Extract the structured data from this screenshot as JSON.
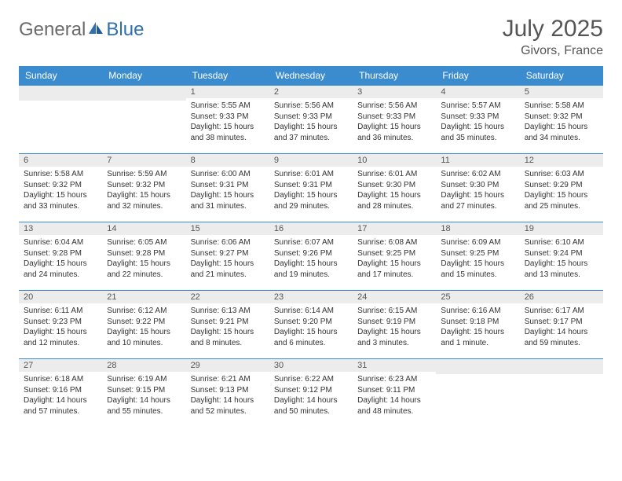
{
  "brand": {
    "part1": "General",
    "part2": "Blue"
  },
  "title": "July 2025",
  "location": "Givors, France",
  "colors": {
    "header_bg": "#3b8bcf",
    "header_fg": "#ffffff",
    "daynum_bg": "#ececec",
    "border": "#3b8bcf",
    "logo_gray": "#6a6a6a",
    "logo_blue": "#2f6fb0"
  },
  "weekdays": [
    "Sunday",
    "Monday",
    "Tuesday",
    "Wednesday",
    "Thursday",
    "Friday",
    "Saturday"
  ],
  "weeks": [
    [
      {
        "day": "",
        "details": ""
      },
      {
        "day": "",
        "details": ""
      },
      {
        "day": "1",
        "details": "Sunrise: 5:55 AM\nSunset: 9:33 PM\nDaylight: 15 hours and 38 minutes."
      },
      {
        "day": "2",
        "details": "Sunrise: 5:56 AM\nSunset: 9:33 PM\nDaylight: 15 hours and 37 minutes."
      },
      {
        "day": "3",
        "details": "Sunrise: 5:56 AM\nSunset: 9:33 PM\nDaylight: 15 hours and 36 minutes."
      },
      {
        "day": "4",
        "details": "Sunrise: 5:57 AM\nSunset: 9:33 PM\nDaylight: 15 hours and 35 minutes."
      },
      {
        "day": "5",
        "details": "Sunrise: 5:58 AM\nSunset: 9:32 PM\nDaylight: 15 hours and 34 minutes."
      }
    ],
    [
      {
        "day": "6",
        "details": "Sunrise: 5:58 AM\nSunset: 9:32 PM\nDaylight: 15 hours and 33 minutes."
      },
      {
        "day": "7",
        "details": "Sunrise: 5:59 AM\nSunset: 9:32 PM\nDaylight: 15 hours and 32 minutes."
      },
      {
        "day": "8",
        "details": "Sunrise: 6:00 AM\nSunset: 9:31 PM\nDaylight: 15 hours and 31 minutes."
      },
      {
        "day": "9",
        "details": "Sunrise: 6:01 AM\nSunset: 9:31 PM\nDaylight: 15 hours and 29 minutes."
      },
      {
        "day": "10",
        "details": "Sunrise: 6:01 AM\nSunset: 9:30 PM\nDaylight: 15 hours and 28 minutes."
      },
      {
        "day": "11",
        "details": "Sunrise: 6:02 AM\nSunset: 9:30 PM\nDaylight: 15 hours and 27 minutes."
      },
      {
        "day": "12",
        "details": "Sunrise: 6:03 AM\nSunset: 9:29 PM\nDaylight: 15 hours and 25 minutes."
      }
    ],
    [
      {
        "day": "13",
        "details": "Sunrise: 6:04 AM\nSunset: 9:28 PM\nDaylight: 15 hours and 24 minutes."
      },
      {
        "day": "14",
        "details": "Sunrise: 6:05 AM\nSunset: 9:28 PM\nDaylight: 15 hours and 22 minutes."
      },
      {
        "day": "15",
        "details": "Sunrise: 6:06 AM\nSunset: 9:27 PM\nDaylight: 15 hours and 21 minutes."
      },
      {
        "day": "16",
        "details": "Sunrise: 6:07 AM\nSunset: 9:26 PM\nDaylight: 15 hours and 19 minutes."
      },
      {
        "day": "17",
        "details": "Sunrise: 6:08 AM\nSunset: 9:25 PM\nDaylight: 15 hours and 17 minutes."
      },
      {
        "day": "18",
        "details": "Sunrise: 6:09 AM\nSunset: 9:25 PM\nDaylight: 15 hours and 15 minutes."
      },
      {
        "day": "19",
        "details": "Sunrise: 6:10 AM\nSunset: 9:24 PM\nDaylight: 15 hours and 13 minutes."
      }
    ],
    [
      {
        "day": "20",
        "details": "Sunrise: 6:11 AM\nSunset: 9:23 PM\nDaylight: 15 hours and 12 minutes."
      },
      {
        "day": "21",
        "details": "Sunrise: 6:12 AM\nSunset: 9:22 PM\nDaylight: 15 hours and 10 minutes."
      },
      {
        "day": "22",
        "details": "Sunrise: 6:13 AM\nSunset: 9:21 PM\nDaylight: 15 hours and 8 minutes."
      },
      {
        "day": "23",
        "details": "Sunrise: 6:14 AM\nSunset: 9:20 PM\nDaylight: 15 hours and 6 minutes."
      },
      {
        "day": "24",
        "details": "Sunrise: 6:15 AM\nSunset: 9:19 PM\nDaylight: 15 hours and 3 minutes."
      },
      {
        "day": "25",
        "details": "Sunrise: 6:16 AM\nSunset: 9:18 PM\nDaylight: 15 hours and 1 minute."
      },
      {
        "day": "26",
        "details": "Sunrise: 6:17 AM\nSunset: 9:17 PM\nDaylight: 14 hours and 59 minutes."
      }
    ],
    [
      {
        "day": "27",
        "details": "Sunrise: 6:18 AM\nSunset: 9:16 PM\nDaylight: 14 hours and 57 minutes."
      },
      {
        "day": "28",
        "details": "Sunrise: 6:19 AM\nSunset: 9:15 PM\nDaylight: 14 hours and 55 minutes."
      },
      {
        "day": "29",
        "details": "Sunrise: 6:21 AM\nSunset: 9:13 PM\nDaylight: 14 hours and 52 minutes."
      },
      {
        "day": "30",
        "details": "Sunrise: 6:22 AM\nSunset: 9:12 PM\nDaylight: 14 hours and 50 minutes."
      },
      {
        "day": "31",
        "details": "Sunrise: 6:23 AM\nSunset: 9:11 PM\nDaylight: 14 hours and 48 minutes."
      },
      {
        "day": "",
        "details": ""
      },
      {
        "day": "",
        "details": ""
      }
    ]
  ]
}
